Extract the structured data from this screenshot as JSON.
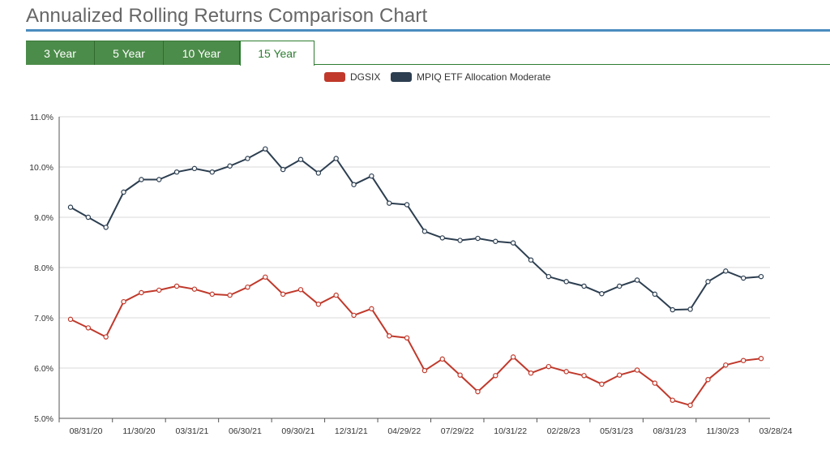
{
  "page": {
    "title": "Annualized Rolling Returns Comparison Chart"
  },
  "tabs": [
    {
      "label": "3 Year",
      "active": false
    },
    {
      "label": "5 Year",
      "active": false
    },
    {
      "label": "10 Year",
      "active": false
    },
    {
      "label": "15 Year",
      "active": true
    }
  ],
  "colors": {
    "tab_green": "#4c8c4a",
    "title_rule": "#4a8cbf"
  },
  "chart_data": {
    "type": "line",
    "title": "",
    "xlabel": "",
    "ylabel": "",
    "ylim": [
      5.0,
      11.0
    ],
    "y_ticks": [
      "5.0%",
      "6.0%",
      "7.0%",
      "8.0%",
      "9.0%",
      "10.0%",
      "11.0%"
    ],
    "x_tick_labels": [
      "08/31/20",
      "11/30/20",
      "03/31/21",
      "06/30/21",
      "09/30/21",
      "12/31/21",
      "04/29/22",
      "07/29/22",
      "10/31/22",
      "02/28/23",
      "05/31/23",
      "08/31/23",
      "11/30/23",
      "03/28/24"
    ],
    "grid": true,
    "legend": "top",
    "series": [
      {
        "name": "DGSIX",
        "color": "#c0392b",
        "values": [
          6.97,
          6.8,
          6.62,
          7.32,
          7.5,
          7.55,
          7.63,
          7.57,
          7.47,
          7.45,
          7.61,
          7.81,
          7.47,
          7.56,
          7.27,
          7.45,
          7.05,
          7.18,
          6.64,
          6.6,
          5.95,
          6.18,
          5.86,
          5.53,
          5.85,
          6.22,
          5.9,
          6.03,
          5.93,
          5.85,
          5.68,
          5.86,
          5.96,
          5.7,
          5.36,
          5.26,
          5.77,
          6.06,
          6.15,
          6.19
        ]
      },
      {
        "name": "MPIQ ETF Allocation Moderate",
        "color": "#2c3e50",
        "values": [
          9.2,
          9.0,
          8.8,
          9.5,
          9.75,
          9.75,
          9.9,
          9.97,
          9.9,
          10.02,
          10.17,
          10.36,
          9.95,
          10.15,
          9.88,
          10.17,
          9.65,
          9.82,
          9.28,
          9.25,
          8.72,
          8.59,
          8.54,
          8.58,
          8.52,
          8.49,
          8.15,
          7.82,
          7.72,
          7.63,
          7.48,
          7.63,
          7.75,
          7.47,
          7.16,
          7.17,
          7.72,
          7.93,
          7.79,
          7.82
        ]
      }
    ]
  }
}
